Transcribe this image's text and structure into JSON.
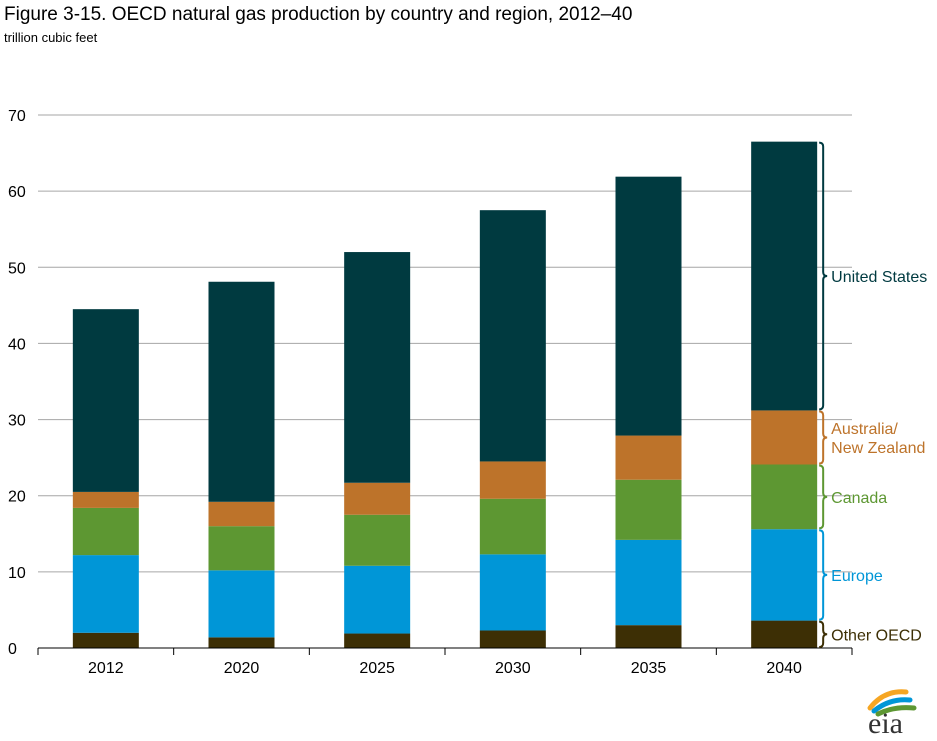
{
  "title": "Figure 3-15. OECD natural gas production by country and region, 2012–40",
  "subtitle": "trillion cubic feet",
  "logo_text": "eia",
  "chart_data": {
    "type": "bar",
    "stacked": true,
    "categories": [
      "2012",
      "2020",
      "2025",
      "2030",
      "2035",
      "2040"
    ],
    "ylim": [
      0,
      70
    ],
    "yticks": [
      "0",
      "10",
      "20",
      "30",
      "40",
      "50",
      "60",
      "70"
    ],
    "grid": true,
    "legend_placement": "right",
    "series": [
      {
        "name": "Other OECD",
        "color": "#3d2f05",
        "values": [
          2.0,
          1.4,
          1.9,
          2.3,
          3.0,
          3.6
        ]
      },
      {
        "name": "Europe",
        "color": "#0096d7",
        "values": [
          10.2,
          8.8,
          8.9,
          10.0,
          11.2,
          12.0
        ]
      },
      {
        "name": "Canada",
        "color": "#5d9732",
        "values": [
          6.2,
          5.8,
          6.7,
          7.3,
          7.9,
          8.5
        ]
      },
      {
        "name": "Australia/\nNew Zealand",
        "color": "#bd732a",
        "values": [
          2.1,
          3.2,
          4.2,
          4.9,
          5.8,
          7.1
        ]
      },
      {
        "name": "United States",
        "color": "#003a40",
        "values": [
          24.0,
          28.9,
          30.3,
          33.0,
          34.0,
          35.3
        ]
      }
    ]
  }
}
